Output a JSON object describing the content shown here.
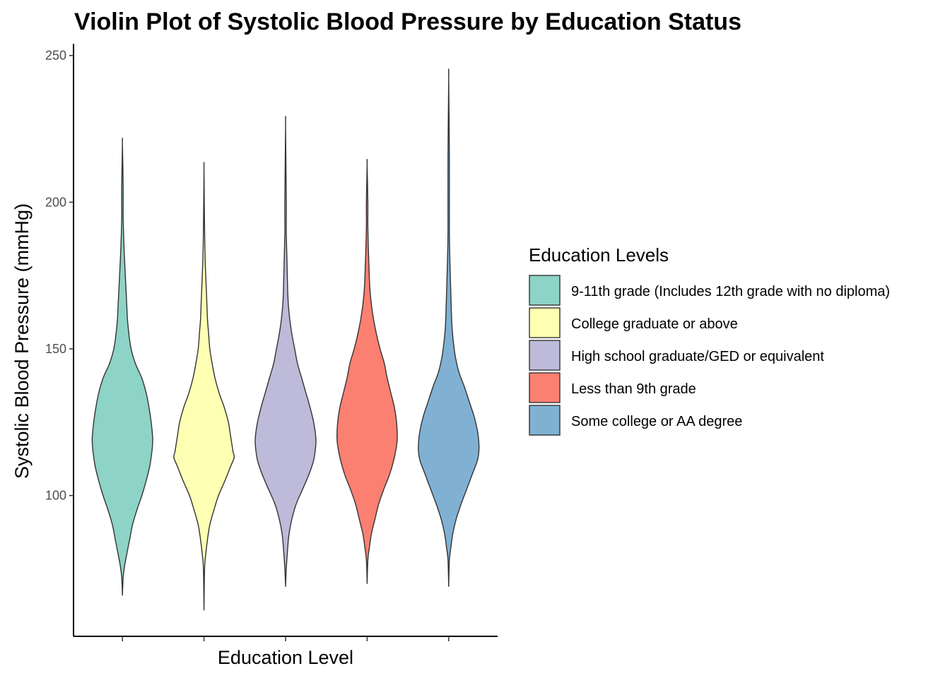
{
  "chart_data": {
    "type": "violin",
    "title": "Violin Plot of Systolic Blood Pressure by Education Status",
    "xlabel": "Education Level",
    "ylabel": "Systolic Blood Pressure (mmHg)",
    "ylim": [
      52,
      254
    ],
    "yticks": [
      100,
      150,
      200,
      250
    ],
    "grid": false,
    "legend": {
      "title": "Education Levels",
      "position": "right"
    },
    "series": [
      {
        "name": "9-11th grade (Includes 12th grade with no diploma)",
        "color": "#8DD3C7",
        "min": 66,
        "max": 220,
        "profile": [
          [
            66,
            0
          ],
          [
            72,
            1
          ],
          [
            76,
            3
          ],
          [
            80,
            6
          ],
          [
            85,
            10
          ],
          [
            90,
            14
          ],
          [
            95,
            20
          ],
          [
            100,
            27
          ],
          [
            105,
            33
          ],
          [
            110,
            38
          ],
          [
            115,
            41
          ],
          [
            118,
            42
          ],
          [
            120,
            42
          ],
          [
            125,
            40
          ],
          [
            130,
            37
          ],
          [
            135,
            33
          ],
          [
            140,
            27
          ],
          [
            145,
            18
          ],
          [
            150,
            12
          ],
          [
            155,
            9
          ],
          [
            160,
            7
          ],
          [
            165,
            6
          ],
          [
            170,
            5
          ],
          [
            175,
            4
          ],
          [
            180,
            3
          ],
          [
            186,
            2
          ],
          [
            195,
            1
          ],
          [
            205,
            1
          ],
          [
            220,
            0
          ]
        ]
      },
      {
        "name": "College graduate or above",
        "color": "#FFFFB3",
        "min": 61,
        "max": 211,
        "profile": [
          [
            61,
            0
          ],
          [
            75,
            1
          ],
          [
            80,
            3
          ],
          [
            85,
            6
          ],
          [
            90,
            10
          ],
          [
            95,
            17
          ],
          [
            100,
            25
          ],
          [
            105,
            36
          ],
          [
            110,
            46
          ],
          [
            113,
            52
          ],
          [
            115,
            50
          ],
          [
            120,
            46
          ],
          [
            125,
            42
          ],
          [
            130,
            35
          ],
          [
            135,
            26
          ],
          [
            140,
            19
          ],
          [
            145,
            14
          ],
          [
            150,
            10
          ],
          [
            155,
            8
          ],
          [
            160,
            6
          ],
          [
            165,
            5
          ],
          [
            170,
            4
          ],
          [
            175,
            3
          ],
          [
            180,
            2
          ],
          [
            190,
            1
          ],
          [
            211,
            0
          ]
        ]
      },
      {
        "name": "High school graduate/GED or equivalent",
        "color": "#BEBADA",
        "min": 69,
        "max": 226,
        "profile": [
          [
            69,
            0
          ],
          [
            75,
            1
          ],
          [
            82,
            3
          ],
          [
            87,
            5
          ],
          [
            92,
            9
          ],
          [
            97,
            15
          ],
          [
            102,
            24
          ],
          [
            107,
            33
          ],
          [
            112,
            40
          ],
          [
            117,
            43
          ],
          [
            120,
            43
          ],
          [
            125,
            40
          ],
          [
            130,
            35
          ],
          [
            135,
            29
          ],
          [
            140,
            23
          ],
          [
            145,
            17
          ],
          [
            150,
            13
          ],
          [
            155,
            9
          ],
          [
            160,
            6
          ],
          [
            165,
            4
          ],
          [
            170,
            3
          ],
          [
            180,
            2
          ],
          [
            190,
            1
          ],
          [
            200,
            1
          ],
          [
            226,
            0
          ]
        ]
      },
      {
        "name": "Less than 9th grade",
        "color": "#FB8072",
        "min": 70,
        "max": 213,
        "profile": [
          [
            70,
            0
          ],
          [
            78,
            1
          ],
          [
            82,
            3
          ],
          [
            87,
            6
          ],
          [
            92,
            11
          ],
          [
            97,
            16
          ],
          [
            102,
            23
          ],
          [
            107,
            31
          ],
          [
            112,
            37
          ],
          [
            117,
            41
          ],
          [
            120,
            42
          ],
          [
            125,
            41
          ],
          [
            130,
            38
          ],
          [
            135,
            33
          ],
          [
            140,
            28
          ],
          [
            145,
            24
          ],
          [
            150,
            18
          ],
          [
            155,
            13
          ],
          [
            160,
            9
          ],
          [
            165,
            6
          ],
          [
            170,
            4
          ],
          [
            175,
            3
          ],
          [
            182,
            2
          ],
          [
            192,
            1
          ],
          [
            200,
            1
          ],
          [
            213,
            0
          ]
        ]
      },
      {
        "name": "Some college or AA degree",
        "color": "#80B1D3",
        "min": 69,
        "max": 242,
        "profile": [
          [
            69,
            0
          ],
          [
            78,
            1
          ],
          [
            82,
            3
          ],
          [
            87,
            6
          ],
          [
            92,
            11
          ],
          [
            97,
            18
          ],
          [
            102,
            26
          ],
          [
            107,
            34
          ],
          [
            112,
            42
          ],
          [
            115,
            44
          ],
          [
            118,
            44
          ],
          [
            122,
            42
          ],
          [
            127,
            37
          ],
          [
            132,
            30
          ],
          [
            137,
            23
          ],
          [
            142,
            15
          ],
          [
            147,
            10
          ],
          [
            152,
            7
          ],
          [
            157,
            5
          ],
          [
            162,
            4
          ],
          [
            170,
            3
          ],
          [
            178,
            2
          ],
          [
            190,
            1
          ],
          [
            215,
            1
          ],
          [
            242,
            0
          ]
        ]
      }
    ]
  }
}
